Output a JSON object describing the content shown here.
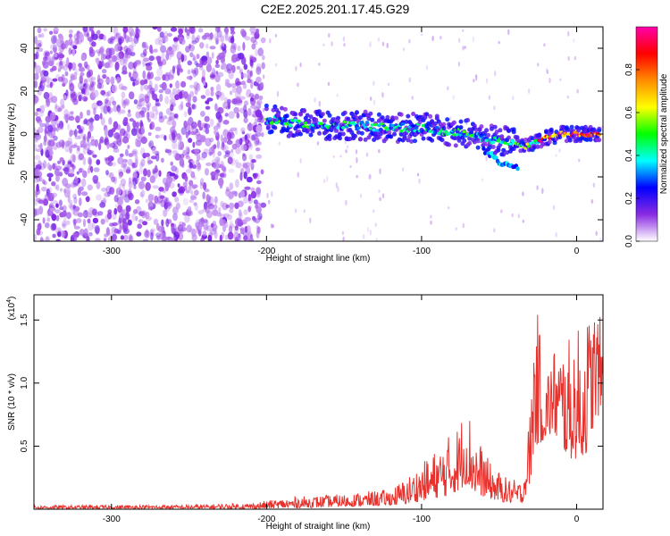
{
  "title": "C2E2.2025.201.17.45.G29",
  "chart_data": [
    {
      "type": "heatmap",
      "xlabel": "Height of straight line (km)",
      "ylabel": "Frequency (Hz)",
      "xlim": [
        -350,
        17
      ],
      "ylim": [
        -50,
        50
      ],
      "x_ticks": [
        -300,
        -200,
        -100,
        0
      ],
      "x_tick_labels": [
        "-300",
        "-200",
        "-100",
        "0"
      ],
      "y_ticks": [
        -40,
        -20,
        0,
        20,
        40
      ],
      "y_tick_labels": [
        "-40",
        "-20",
        "0",
        "20",
        "40"
      ],
      "colorbar": {
        "label": "Normalized spectral amplitude",
        "range": [
          0,
          1
        ],
        "ticks": [
          0.0,
          0.2,
          0.4,
          0.6,
          0.8
        ],
        "tick_labels": [
          "0.0",
          "0.2",
          "0.4",
          "0.6",
          "0.8"
        ],
        "colors": [
          "#ffffff",
          "#8a2be2",
          "#0000ff",
          "#00ffff",
          "#00ff00",
          "#ffff00",
          "#ff8c00",
          "#ff0000",
          "#ff00aa"
        ]
      },
      "noise_region": {
        "x_range": [
          -350,
          -202
        ],
        "level": "low"
      },
      "ridge": [
        {
          "x": -200,
          "y": 7
        },
        {
          "x": -180,
          "y": 5
        },
        {
          "x": -160,
          "y": 4
        },
        {
          "x": -140,
          "y": 4
        },
        {
          "x": -120,
          "y": 3
        },
        {
          "x": -100,
          "y": 3
        },
        {
          "x": -80,
          "y": 1
        },
        {
          "x": -70,
          "y": 0
        },
        {
          "x": -60,
          "y": -2
        },
        {
          "x": -50,
          "y": -3
        },
        {
          "x": -40,
          "y": -4
        },
        {
          "x": -33,
          "y": -6
        },
        {
          "x": -28,
          "y": -4
        },
        {
          "x": -20,
          "y": -2
        },
        {
          "x": -10,
          "y": 0
        },
        {
          "x": 0,
          "y": 0
        },
        {
          "x": 15,
          "y": 0
        }
      ],
      "secondary_branch": [
        {
          "x": -60,
          "y": -8
        },
        {
          "x": -50,
          "y": -13
        },
        {
          "x": -38,
          "y": -15
        }
      ]
    },
    {
      "type": "line",
      "xlabel": "Height of straight line (km)",
      "ylabel": "SNR (10 * v/v)",
      "y_multiplier": "(x10",
      "y_multiplier_exp": "4",
      "y_multiplier_close": ")",
      "xlim": [
        -350,
        17
      ],
      "ylim": [
        0,
        1.7
      ],
      "x_ticks": [
        -300,
        -200,
        -100,
        0
      ],
      "x_tick_labels": [
        "-300",
        "-200",
        "-100",
        "0"
      ],
      "y_ticks": [
        0.5,
        1.0,
        1.5
      ],
      "y_tick_labels": [
        "0.5",
        "1.0",
        "1.5"
      ],
      "series": [
        {
          "color": "#e8322d",
          "envelope": [
            {
              "x": -350,
              "lo": 0.005,
              "hi": 0.03
            },
            {
              "x": -250,
              "lo": 0.005,
              "hi": 0.035
            },
            {
              "x": -210,
              "lo": 0.005,
              "hi": 0.05
            },
            {
              "x": -180,
              "lo": 0.01,
              "hi": 0.1
            },
            {
              "x": -150,
              "lo": 0.02,
              "hi": 0.12
            },
            {
              "x": -120,
              "lo": 0.03,
              "hi": 0.16
            },
            {
              "x": -110,
              "lo": 0.04,
              "hi": 0.25
            },
            {
              "x": -95,
              "lo": 0.08,
              "hi": 0.42
            },
            {
              "x": -85,
              "lo": 0.1,
              "hi": 0.55
            },
            {
              "x": -75,
              "lo": 0.15,
              "hi": 0.7
            },
            {
              "x": -72,
              "lo": 0.2,
              "hi": 0.9
            },
            {
              "x": -65,
              "lo": 0.12,
              "hi": 0.6
            },
            {
              "x": -55,
              "lo": 0.08,
              "hi": 0.35
            },
            {
              "x": -45,
              "lo": 0.05,
              "hi": 0.25
            },
            {
              "x": -35,
              "lo": 0.05,
              "hi": 0.22
            },
            {
              "x": -30,
              "lo": 0.2,
              "hi": 0.8
            },
            {
              "x": -27,
              "lo": 0.5,
              "hi": 1.7
            },
            {
              "x": -20,
              "lo": 0.55,
              "hi": 1.1
            },
            {
              "x": -15,
              "lo": 0.6,
              "hi": 1.3
            },
            {
              "x": -5,
              "lo": 0.4,
              "hi": 1.35
            },
            {
              "x": 5,
              "lo": 0.4,
              "hi": 1.5
            },
            {
              "x": 12,
              "lo": 0.7,
              "hi": 1.65
            },
            {
              "x": 17,
              "lo": 0.8,
              "hi": 1.45
            }
          ]
        }
      ]
    }
  ]
}
